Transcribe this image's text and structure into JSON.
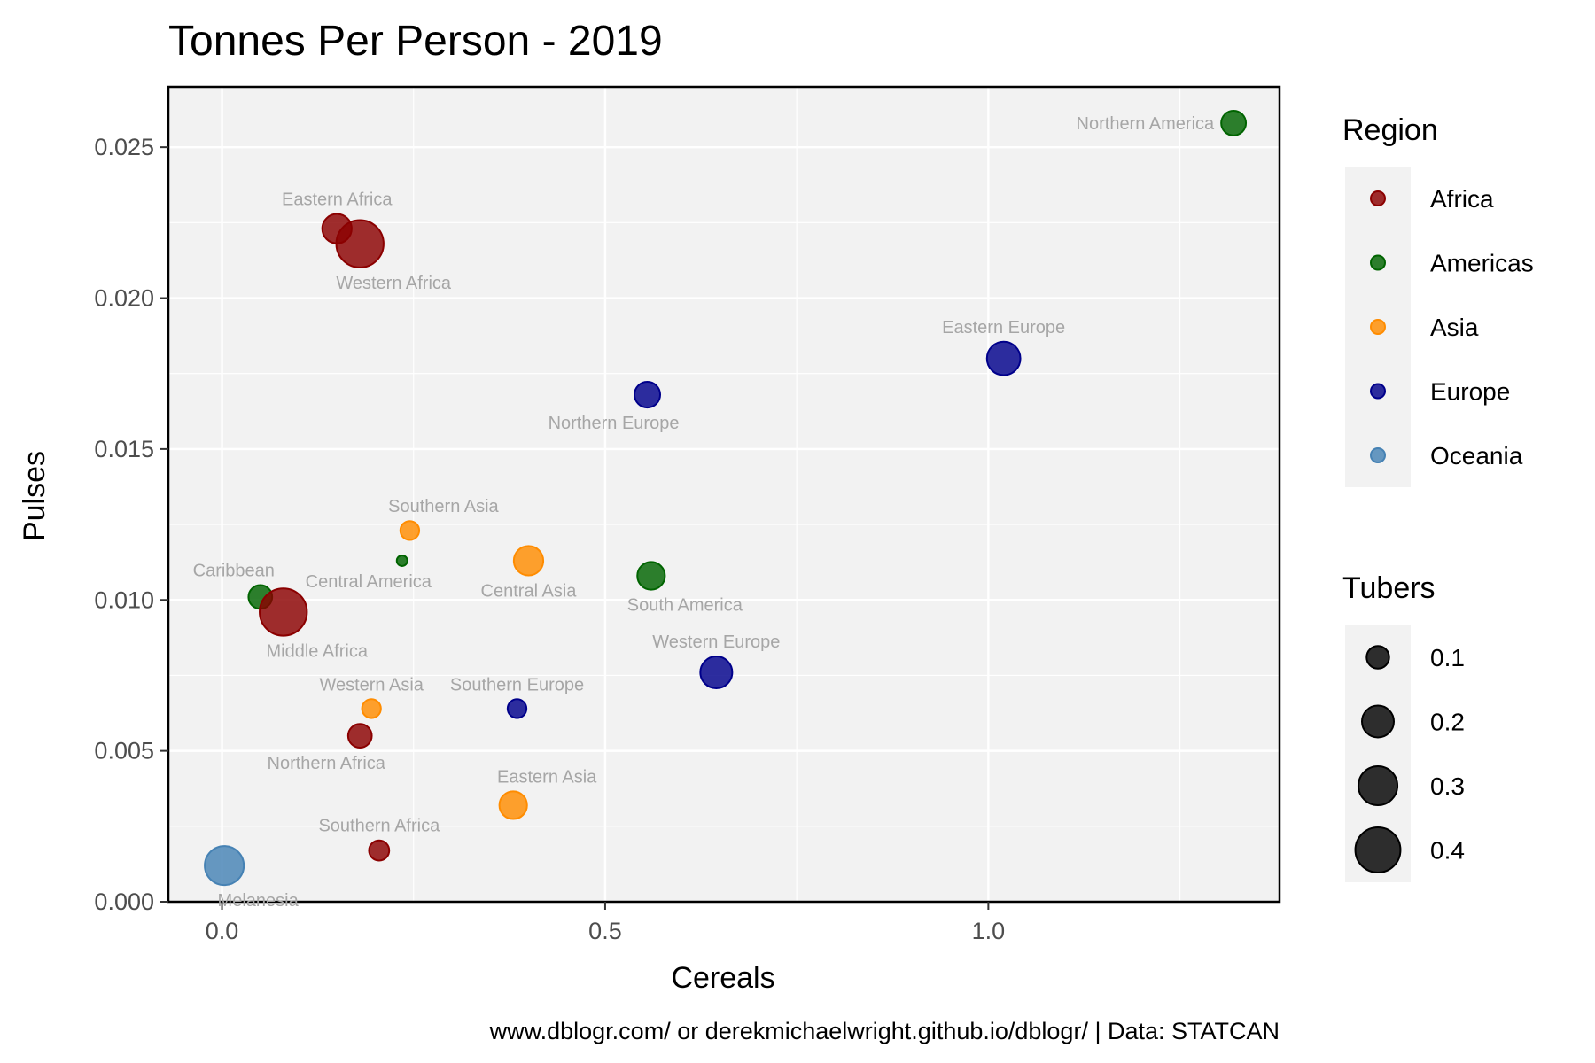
{
  "chart_data": {
    "type": "scatter",
    "title": "Tonnes Per Person - 2019",
    "xlabel": "Cereals",
    "ylabel": "Pulses",
    "caption": "www.dblogr.com/ or derekmichaelwright.github.io/dblogr/ | Data: STATCAN",
    "xlim": [
      -0.07,
      1.38
    ],
    "ylim": [
      0.0,
      0.027
    ],
    "x_ticks": [
      {
        "value": 0.0,
        "label": "0.0"
      },
      {
        "value": 0.5,
        "label": "0.5"
      },
      {
        "value": 1.0,
        "label": "1.0"
      }
    ],
    "y_ticks": [
      {
        "value": 0.0,
        "label": "0.000"
      },
      {
        "value": 0.005,
        "label": "0.005"
      },
      {
        "value": 0.01,
        "label": "0.010"
      },
      {
        "value": 0.015,
        "label": "0.015"
      },
      {
        "value": 0.02,
        "label": "0.020"
      },
      {
        "value": 0.025,
        "label": "0.025"
      }
    ],
    "grid": true,
    "legend_placement": "right",
    "color_legend": {
      "title": "Region",
      "entries": [
        {
          "label": "Africa",
          "color": "#8b0000"
        },
        {
          "label": "Americas",
          "color": "#006400"
        },
        {
          "label": "Asia",
          "color": "#ff8c00"
        },
        {
          "label": "Europe",
          "color": "#00008b"
        },
        {
          "label": "Oceania",
          "color": "#4682b4"
        }
      ]
    },
    "size_legend": {
      "title": "Tubers",
      "entries": [
        {
          "label": "0.1",
          "value": 0.1
        },
        {
          "label": "0.2",
          "value": 0.2
        },
        {
          "label": "0.3",
          "value": 0.3
        },
        {
          "label": "0.4",
          "value": 0.4
        }
      ]
    },
    "size_scale": {
      "value_range": [
        0.02,
        0.45
      ],
      "radius_range": [
        6,
        27
      ]
    },
    "points": [
      {
        "label": "Northern America",
        "region": "Americas",
        "x": 1.32,
        "y": 0.0258,
        "tubers": 0.12,
        "label_pos": "left"
      },
      {
        "label": "Eastern Africa",
        "region": "Africa",
        "x": 0.15,
        "y": 0.0223,
        "tubers": 0.17,
        "label_pos": "above"
      },
      {
        "label": "Western Africa",
        "region": "Africa",
        "x": 0.18,
        "y": 0.0218,
        "tubers": 0.44,
        "label_pos": "below-right"
      },
      {
        "label": "Eastern Europe",
        "region": "Europe",
        "x": 1.02,
        "y": 0.018,
        "tubers": 0.22,
        "label_pos": "above"
      },
      {
        "label": "Northern Europe",
        "region": "Europe",
        "x": 0.555,
        "y": 0.0168,
        "tubers": 0.13,
        "label_pos": "below-left"
      },
      {
        "label": "Southern Asia",
        "region": "Asia",
        "x": 0.245,
        "y": 0.0123,
        "tubers": 0.07,
        "label_pos": "above-right"
      },
      {
        "label": "Central Asia",
        "region": "Asia",
        "x": 0.4,
        "y": 0.0113,
        "tubers": 0.17,
        "label_pos": "below"
      },
      {
        "label": "Central America",
        "region": "Americas",
        "x": 0.235,
        "y": 0.0113,
        "tubers": 0.02,
        "label_pos": "below-left"
      },
      {
        "label": "South America",
        "region": "Americas",
        "x": 0.56,
        "y": 0.0108,
        "tubers": 0.15,
        "label_pos": "below-right"
      },
      {
        "label": "Caribbean",
        "region": "Americas",
        "x": 0.05,
        "y": 0.0101,
        "tubers": 0.11,
        "label_pos": "above-left"
      },
      {
        "label": "Middle Africa",
        "region": "Africa",
        "x": 0.08,
        "y": 0.0096,
        "tubers": 0.44,
        "label_pos": "below-right"
      },
      {
        "label": "Western Europe",
        "region": "Europe",
        "x": 0.645,
        "y": 0.0076,
        "tubers": 0.2,
        "label_pos": "above"
      },
      {
        "label": "Western Asia",
        "region": "Asia",
        "x": 0.195,
        "y": 0.0064,
        "tubers": 0.07,
        "label_pos": "above"
      },
      {
        "label": "Southern Europe",
        "region": "Europe",
        "x": 0.385,
        "y": 0.0064,
        "tubers": 0.07,
        "label_pos": "above"
      },
      {
        "label": "Northern Africa",
        "region": "Africa",
        "x": 0.18,
        "y": 0.0055,
        "tubers": 0.11,
        "label_pos": "below-left"
      },
      {
        "label": "Eastern Asia",
        "region": "Asia",
        "x": 0.38,
        "y": 0.0032,
        "tubers": 0.15,
        "label_pos": "above-right"
      },
      {
        "label": "Southern Africa",
        "region": "Africa",
        "x": 0.205,
        "y": 0.0017,
        "tubers": 0.08,
        "label_pos": "above"
      },
      {
        "label": "Melanesia",
        "region": "Oceania",
        "x": 0.003,
        "y": 0.0012,
        "tubers": 0.3,
        "label_pos": "below-right"
      }
    ]
  }
}
